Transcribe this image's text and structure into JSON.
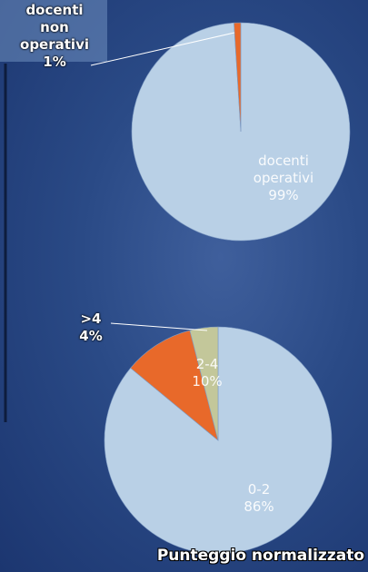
{
  "chart_data": [
    {
      "type": "pie",
      "categories": [
        "docenti operativi",
        "docenti non operativi"
      ],
      "values": [
        99,
        1
      ],
      "value_labels": [
        "99%",
        "1%"
      ],
      "colors": [
        "#b9d0e6",
        "#e8692a"
      ]
    },
    {
      "type": "pie",
      "title": "Punteggio normalizzato",
      "categories": [
        "0-2",
        "2-4",
        ">4"
      ],
      "values": [
        86,
        10,
        4
      ],
      "value_labels": [
        "86%",
        "10%",
        "4%"
      ],
      "colors": [
        "#b9d0e6",
        "#e8692a",
        "#c3c79a"
      ]
    }
  ]
}
